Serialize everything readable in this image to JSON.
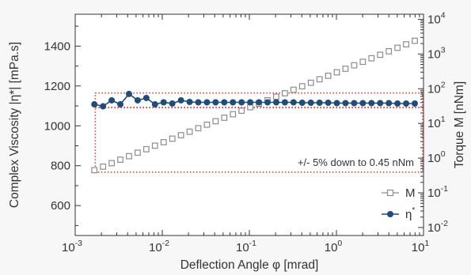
{
  "chart_data": {
    "type": "scatter",
    "title": "",
    "xlabel": "Deflection Angle φ [mrad]",
    "ylabel_left": "Complex Viscosity  |η*| [mPa.s]",
    "ylabel_right": "Torque M [nNm]",
    "x_scale": "log",
    "xlim": [
      0.001,
      10
    ],
    "x_ticks": [
      {
        "base": "10",
        "exp": "-3"
      },
      {
        "base": "10",
        "exp": "-2"
      },
      {
        "base": "10",
        "exp": "-1"
      },
      {
        "base": "10",
        "exp": "0"
      },
      {
        "base": "10",
        "exp": "1"
      }
    ],
    "y_left_lim": [
      450,
      1560
    ],
    "y_left_ticks": [
      "600",
      "800",
      "1000",
      "1200",
      "1400"
    ],
    "y_right_scale": "log",
    "y_right_lim": [
      0.0059,
      14000
    ],
    "y_right_ticks": [
      {
        "base": "10",
        "exp": "-2"
      },
      {
        "base": "10",
        "exp": "-1"
      },
      {
        "base": "10",
        "exp": "0"
      },
      {
        "base": "10",
        "exp": "1"
      },
      {
        "base": "10",
        "exp": "2"
      },
      {
        "base": "10",
        "exp": "3"
      },
      {
        "base": "10",
        "exp": "4"
      }
    ],
    "grid": false,
    "legend_position": "bottom-right",
    "series": [
      {
        "name": "M",
        "axis": "right",
        "marker": "open-square",
        "color": "#8c8c8c",
        "x_log_start": -2.78,
        "x_log_end": 0.9,
        "y_start": 0.45,
        "y_end": 2400,
        "n_points": 38
      },
      {
        "name": "η*",
        "axis": "left",
        "marker": "filled-circle",
        "color": "#1d4d7c",
        "x_log_start": -2.78,
        "x_log_end": 0.9,
        "values": [
          1108,
          1098,
          1128,
          1108,
          1160,
          1128,
          1140,
          1108,
          1118,
          1112,
          1128,
          1120,
          1118,
          1118,
          1118,
          1118,
          1118,
          1118,
          1118,
          1118,
          1118,
          1118,
          1118,
          1118,
          1116,
          1116,
          1116,
          1116,
          1114,
          1114,
          1114,
          1114,
          1114,
          1114,
          1114,
          1112,
          1112,
          1112
        ]
      }
    ],
    "annotations": [
      {
        "text": "+/- 5% down to 0.45 nNm",
        "style": "dotted-red-box",
        "color": "#e23b2e",
        "box_x": [
          0.0017,
          10
        ],
        "box_y_left": [
          1092,
          1165
        ],
        "lower_box_y_left": [
          1092,
          768
        ]
      }
    ]
  }
}
